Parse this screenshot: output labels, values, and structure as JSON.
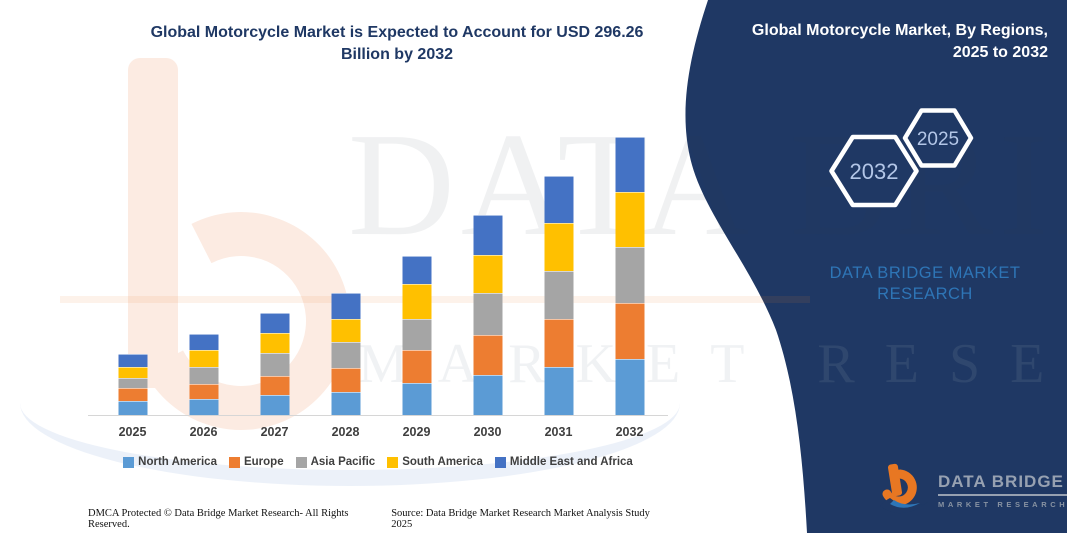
{
  "header": {
    "title_line1": "Global Motorcycle Market is Expected to Account for USD 296.26",
    "title_line2": "Billion by 2032"
  },
  "side_panel": {
    "heading_line1": "Global Motorcycle Market, By Regions,",
    "heading_line2": "2025 to 2032",
    "hexagon_back_label": "2032",
    "hexagon_front_label": "2025",
    "brand_line1": "DATA BRIDGE MARKET",
    "brand_line2": "RESEARCH",
    "panel_color": "#1f3864",
    "brand_text_color": "#2e75b6",
    "hexagon_text_color": "#b3c6e7"
  },
  "chart_data": {
    "type": "bar",
    "stacked": true,
    "title": "Global Motorcycle Market is Expected to Account for USD 296.26 Billion by 2032",
    "unit": "USD Billion (estimated from bar heights; no value axis shown)",
    "categories": [
      "2025",
      "2026",
      "2027",
      "2028",
      "2029",
      "2030",
      "2031",
      "2032"
    ],
    "series": [
      {
        "name": "North America",
        "color": "#5b9bd5",
        "values": [
          15,
          17.5,
          21.5,
          24,
          34.5,
          42.5,
          51,
          60
        ]
      },
      {
        "name": "Europe",
        "color": "#ed7d31",
        "values": [
          13.5,
          16,
          20,
          26,
          35,
          42.5,
          51,
          59.5
        ]
      },
      {
        "name": "Asia Pacific",
        "color": "#a5a5a5",
        "values": [
          10.5,
          18,
          25,
          27.5,
          32.5,
          45,
          51.5,
          59.5
        ]
      },
      {
        "name": "South America",
        "color": "#ffc000",
        "values": [
          12.5,
          17.5,
          20.5,
          25,
          37.5,
          40,
          50.5,
          58.5
        ]
      },
      {
        "name": "Middle East and Africa",
        "color": "#4472c4",
        "values": [
          13.5,
          17,
          21.5,
          27,
          30,
          42.5,
          50.5,
          58.5
        ]
      }
    ],
    "totals": [
      65,
      86,
      108.5,
      129.5,
      169.5,
      212.5,
      254.5,
      296.26
    ],
    "xlabel": "",
    "ylabel": "",
    "gridlines": false,
    "y_axis_visible": false,
    "legend_position": "bottom"
  },
  "watermark": {
    "row1": "DATA BRIDGE",
    "row2": "MARKET RESEARCH"
  },
  "logo": {
    "name": "DATA BRIDGE",
    "subtitle": "MARKET RESEARCH"
  },
  "footer": {
    "left": "DMCA Protected © Data Bridge Market Research-  All Rights Reserved.",
    "right": "Source: Data Bridge Market Research  Market Analysis Study 2025"
  }
}
